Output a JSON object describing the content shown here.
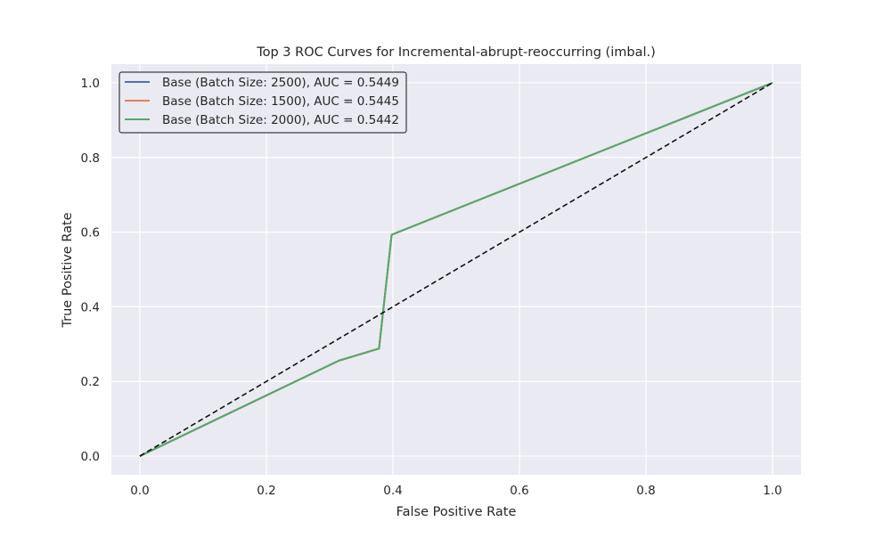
{
  "chart_data": {
    "type": "line",
    "title": "Top 3 ROC Curves for Incremental-abrupt-reoccurring (imbal.)",
    "xlabel": "False Positive Rate",
    "ylabel": "True Positive Rate",
    "xlim": [
      -0.045,
      1.045
    ],
    "ylim": [
      -0.05,
      1.05
    ],
    "xticks": [
      0.0,
      0.2,
      0.4,
      0.6,
      0.8,
      1.0
    ],
    "yticks": [
      0.0,
      0.2,
      0.4,
      0.6,
      0.8,
      1.0
    ],
    "tick_labels_x": [
      "0.0",
      "0.2",
      "0.4",
      "0.6",
      "0.8",
      "1.0"
    ],
    "tick_labels_y": [
      "0.0",
      "0.2",
      "0.4",
      "0.6",
      "0.8",
      "1.0"
    ],
    "grid": true,
    "legend_position": "upper left",
    "background": "#eaeaf2",
    "series": [
      {
        "name": "Base (Batch Size: 2500), AUC = 0.5449",
        "color": "#4c72b0",
        "x": [
          0.0,
          0.315,
          0.378,
          0.398,
          1.0
        ],
        "y": [
          0.0,
          0.256,
          0.288,
          0.593,
          1.0
        ]
      },
      {
        "name": "Base (Batch Size: 1500), AUC = 0.5445",
        "color": "#dd8452",
        "x": [
          0.0,
          0.315,
          0.378,
          0.398,
          1.0
        ],
        "y": [
          0.0,
          0.256,
          0.288,
          0.593,
          1.0
        ]
      },
      {
        "name": "Base (Batch Size: 2000), AUC = 0.5442",
        "color": "#55a868",
        "x": [
          0.0,
          0.315,
          0.378,
          0.398,
          1.0
        ],
        "y": [
          0.0,
          0.256,
          0.288,
          0.593,
          1.0
        ]
      }
    ],
    "reference_line": {
      "x": [
        0.0,
        1.0
      ],
      "y": [
        0.0,
        1.0
      ],
      "color": "#111111",
      "style": "dashed"
    }
  }
}
